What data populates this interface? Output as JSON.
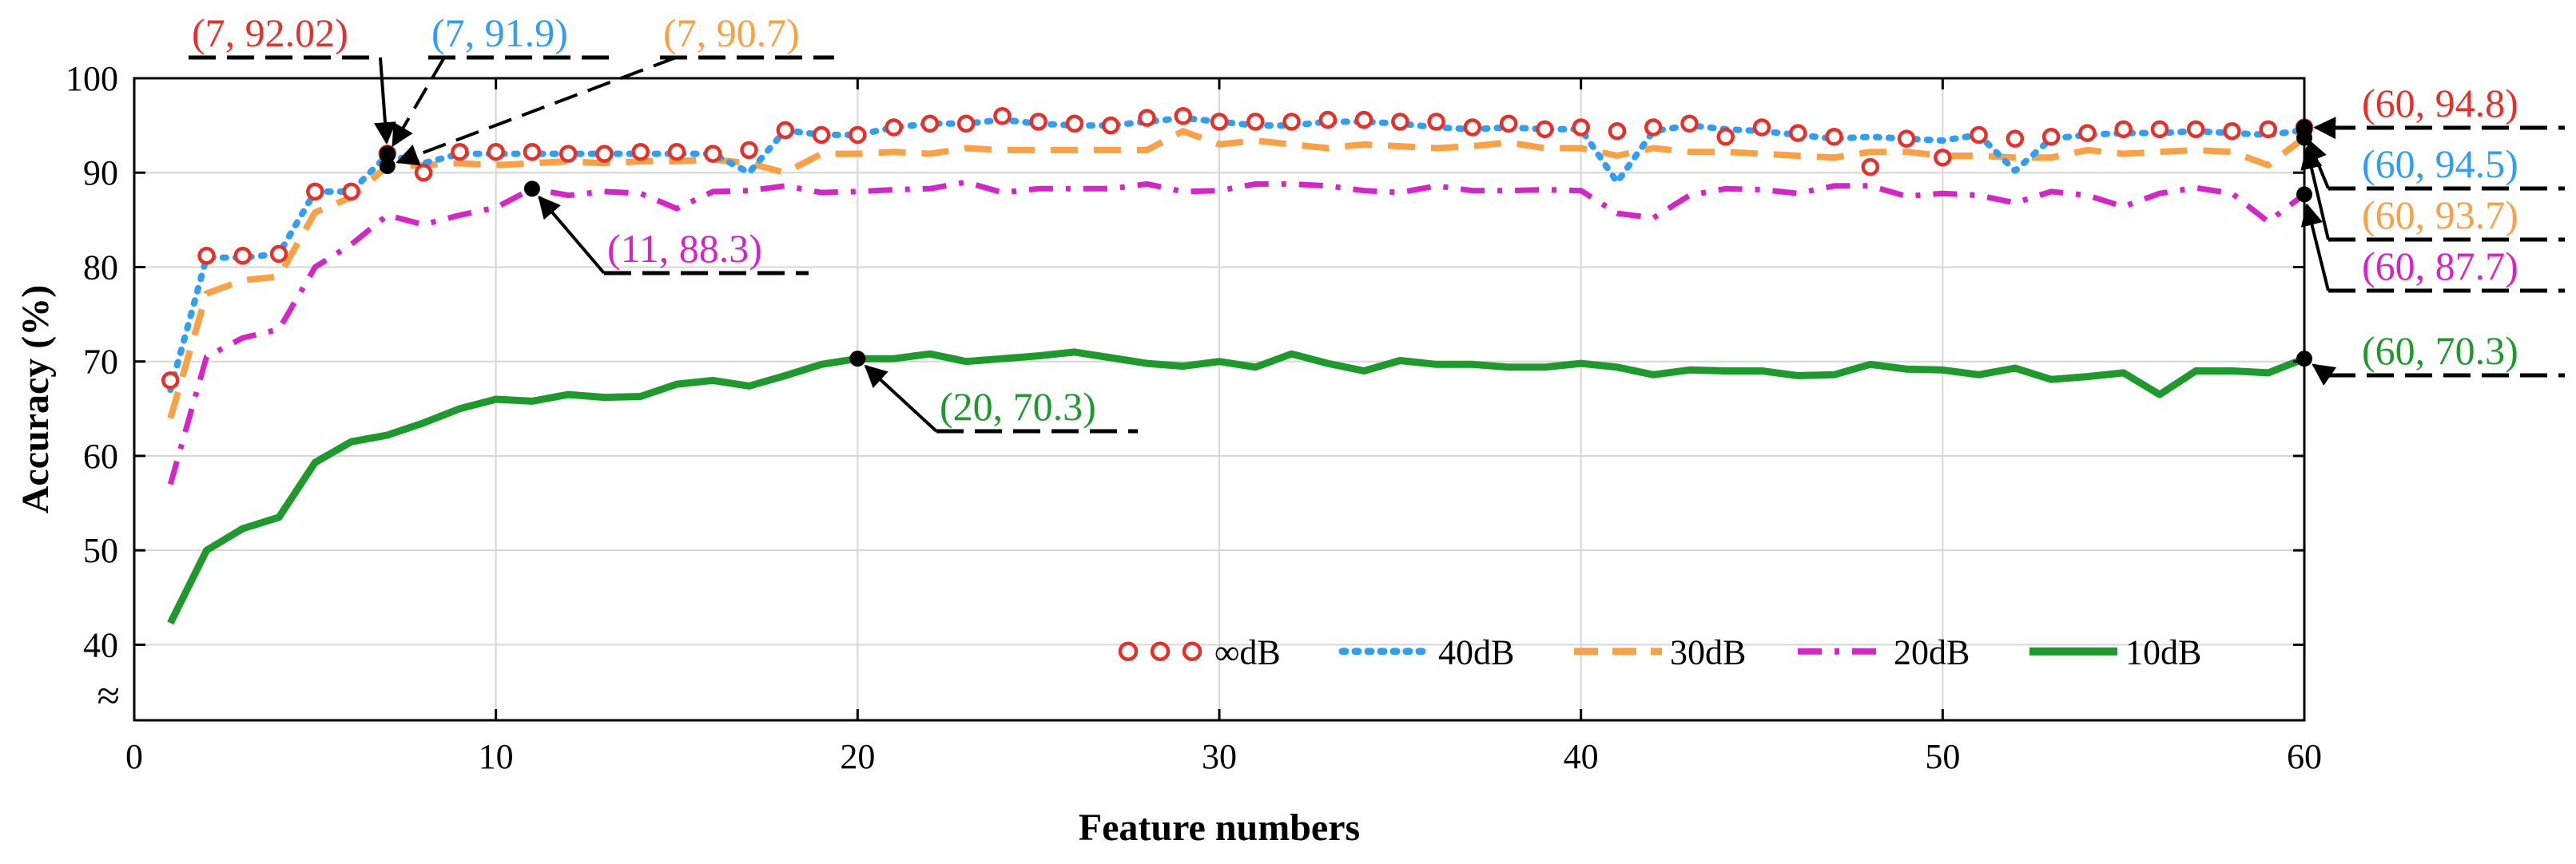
{
  "chart_data": {
    "type": "line",
    "xlabel": "Feature numbers",
    "ylabel": "Accuracy (%)",
    "xlim": [
      0,
      60
    ],
    "ylim": [
      40,
      100
    ],
    "x_ticks": [
      "0",
      "10",
      "20",
      "30",
      "40",
      "50",
      "60"
    ],
    "y_ticks": [
      "40",
      "50",
      "60",
      "70",
      "80",
      "90",
      "100"
    ],
    "axis_break_symbol": "≈",
    "grid": true,
    "legend_position": "bottom-right",
    "x": [
      1,
      2,
      3,
      4,
      5,
      6,
      7,
      8,
      9,
      10,
      11,
      12,
      13,
      14,
      15,
      16,
      17,
      18,
      19,
      20,
      21,
      22,
      23,
      24,
      25,
      26,
      27,
      28,
      29,
      30,
      31,
      32,
      33,
      34,
      35,
      36,
      37,
      38,
      39,
      40,
      41,
      42,
      43,
      44,
      45,
      46,
      47,
      48,
      49,
      50,
      51,
      52,
      53,
      54,
      55,
      56,
      57,
      58,
      59,
      60
    ],
    "series": [
      {
        "name": "∞dB",
        "style": "circles",
        "color": "#e8302b",
        "values": [
          68,
          81.2,
          81.2,
          81.4,
          88,
          88,
          92.02,
          90,
          92.2,
          92.2,
          92.2,
          92,
          92,
          92.2,
          92.2,
          92,
          92.4,
          94.5,
          94,
          94,
          94.8,
          95.2,
          95.2,
          96,
          95.4,
          95.2,
          95,
          95.8,
          96,
          95.4,
          95.4,
          95.4,
          95.6,
          95.6,
          95.4,
          95.4,
          94.8,
          95.2,
          94.6,
          94.8,
          94.4,
          94.8,
          95.2,
          93.8,
          94.8,
          94.2,
          93.8,
          90.6,
          93.6,
          91.6,
          94,
          93.6,
          93.8,
          94.2,
          94.6,
          94.6,
          94.6,
          94.4,
          94.6,
          94.8
        ]
      },
      {
        "name": "40dB",
        "style": "dotted",
        "color": "#2f9ef5",
        "values": [
          67,
          81,
          81,
          81.4,
          88,
          88,
          91.9,
          91,
          92,
          92,
          92,
          92,
          92,
          92,
          92,
          92,
          90,
          94.5,
          94,
          94,
          94.8,
          95.2,
          95.2,
          95.6,
          95.2,
          95,
          95,
          95.4,
          95.8,
          95.4,
          95,
          95,
          95.4,
          95.4,
          95.2,
          94.8,
          94.6,
          94.8,
          94.6,
          94.6,
          89,
          94.4,
          95,
          94.6,
          94.4,
          94,
          93.6,
          93.8,
          93.6,
          93.4,
          94,
          90.2,
          93.6,
          94,
          94.2,
          94.2,
          94.4,
          94.2,
          94,
          94.5
        ]
      },
      {
        "name": "30dB",
        "style": "dashed",
        "color": "#fca044",
        "values": [
          64,
          77.2,
          78.6,
          79,
          85.8,
          87.4,
          90.7,
          90.8,
          91,
          90.8,
          91,
          91.2,
          91,
          91.2,
          91.2,
          91.4,
          91,
          90,
          92,
          92,
          92.2,
          92,
          92.6,
          92.4,
          92.4,
          92.4,
          92.4,
          92.4,
          94.4,
          93,
          93.4,
          93,
          92.6,
          93,
          92.8,
          92.6,
          92.8,
          93.2,
          92.6,
          92.6,
          91.8,
          92.6,
          92.2,
          92.2,
          92,
          91.8,
          91.6,
          92.2,
          92.2,
          91.8,
          91.8,
          91.6,
          91.6,
          92.4,
          92,
          92.2,
          92.4,
          92.2,
          90.8,
          93.7
        ]
      },
      {
        "name": "20dB",
        "style": "dashdot",
        "color": "#d724c9",
        "values": [
          57,
          70.5,
          72.5,
          73.4,
          80,
          82.4,
          85.5,
          84.5,
          85.5,
          86.3,
          88.3,
          87.6,
          88,
          87.8,
          86.2,
          88,
          88.1,
          88.6,
          87.9,
          88,
          88.2,
          88.3,
          89,
          87.9,
          88.3,
          88.3,
          88.3,
          88.8,
          88,
          88.1,
          88.8,
          88.8,
          88.6,
          88.1,
          87.9,
          88.6,
          88.1,
          88.1,
          88.2,
          88.1,
          85.7,
          85.2,
          87.6,
          88.3,
          88.2,
          87.8,
          88.6,
          88.6,
          87.5,
          87.8,
          87.6,
          86.8,
          88,
          87.6,
          86.4,
          87.8,
          88.4,
          87.8,
          84.8,
          87.7
        ]
      },
      {
        "name": "10dB",
        "style": "solid",
        "color": "#1e9a2c",
        "values": [
          42.3,
          50,
          52.3,
          53.5,
          59.3,
          61.5,
          62.2,
          63.5,
          65,
          66,
          65.8,
          66.5,
          66.2,
          66.3,
          67.6,
          68,
          67.4,
          68.5,
          69.7,
          70.3,
          70.3,
          70.8,
          70,
          70.3,
          70.6,
          71,
          70.4,
          69.8,
          69.5,
          70,
          69.4,
          70.8,
          69.8,
          69,
          70.1,
          69.7,
          69.7,
          69.4,
          69.4,
          69.8,
          69.4,
          68.6,
          69.1,
          69,
          69,
          68.5,
          68.6,
          69.7,
          69.2,
          69.1,
          68.6,
          69.3,
          68.1,
          68.4,
          68.8,
          66.5,
          69,
          69,
          68.8,
          70.3
        ]
      }
    ],
    "annotations": [
      {
        "text": "(7, 92.02)",
        "x": 7,
        "y": 92.02,
        "color": "#e8302b"
      },
      {
        "text": "(7, 91.9)",
        "x": 7,
        "y": 91.9,
        "color": "#2f9ef5"
      },
      {
        "text": "(7, 90.7)",
        "x": 7,
        "y": 90.7,
        "color": "#fca044"
      },
      {
        "text": "(11, 88.3)",
        "x": 11,
        "y": 88.3,
        "color": "#d724c9"
      },
      {
        "text": "(20, 70.3)",
        "x": 20,
        "y": 70.3,
        "color": "#1e9a2c"
      },
      {
        "text": "(60, 94.8)",
        "x": 60,
        "y": 94.8,
        "color": "#e8302b"
      },
      {
        "text": "(60, 94.5)",
        "x": 60,
        "y": 94.5,
        "color": "#2f9ef5"
      },
      {
        "text": "(60, 93.7)",
        "x": 60,
        "y": 93.7,
        "color": "#fca044"
      },
      {
        "text": "(60, 87.7)",
        "x": 60,
        "y": 87.7,
        "color": "#d724c9"
      },
      {
        "text": "(60, 70.3)",
        "x": 60,
        "y": 70.3,
        "color": "#1e9a2c"
      }
    ]
  }
}
